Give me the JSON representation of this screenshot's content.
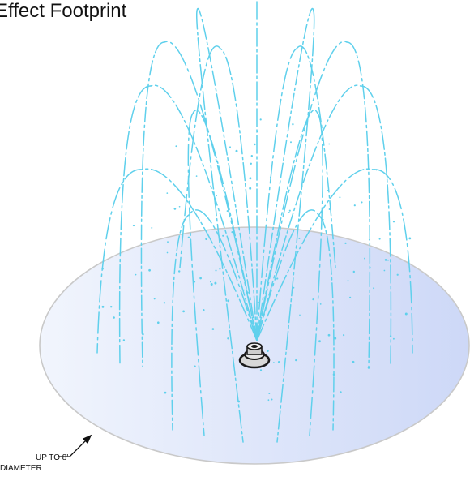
{
  "diagram": {
    "title": "Effect Footprint",
    "diameter_label_line1": "UP TO 8'",
    "diameter_label_line2": "DIAMETER"
  },
  "colors": {
    "water_stream": "#5fd0ec",
    "footprint_fill_left": "#f1f5fd",
    "footprint_fill_right": "#cdd8f7",
    "footprint_outline": "#c9c9c9",
    "nozzle_dark": "#1a1a1a",
    "nozzle_light": "#d8d8d8"
  }
}
